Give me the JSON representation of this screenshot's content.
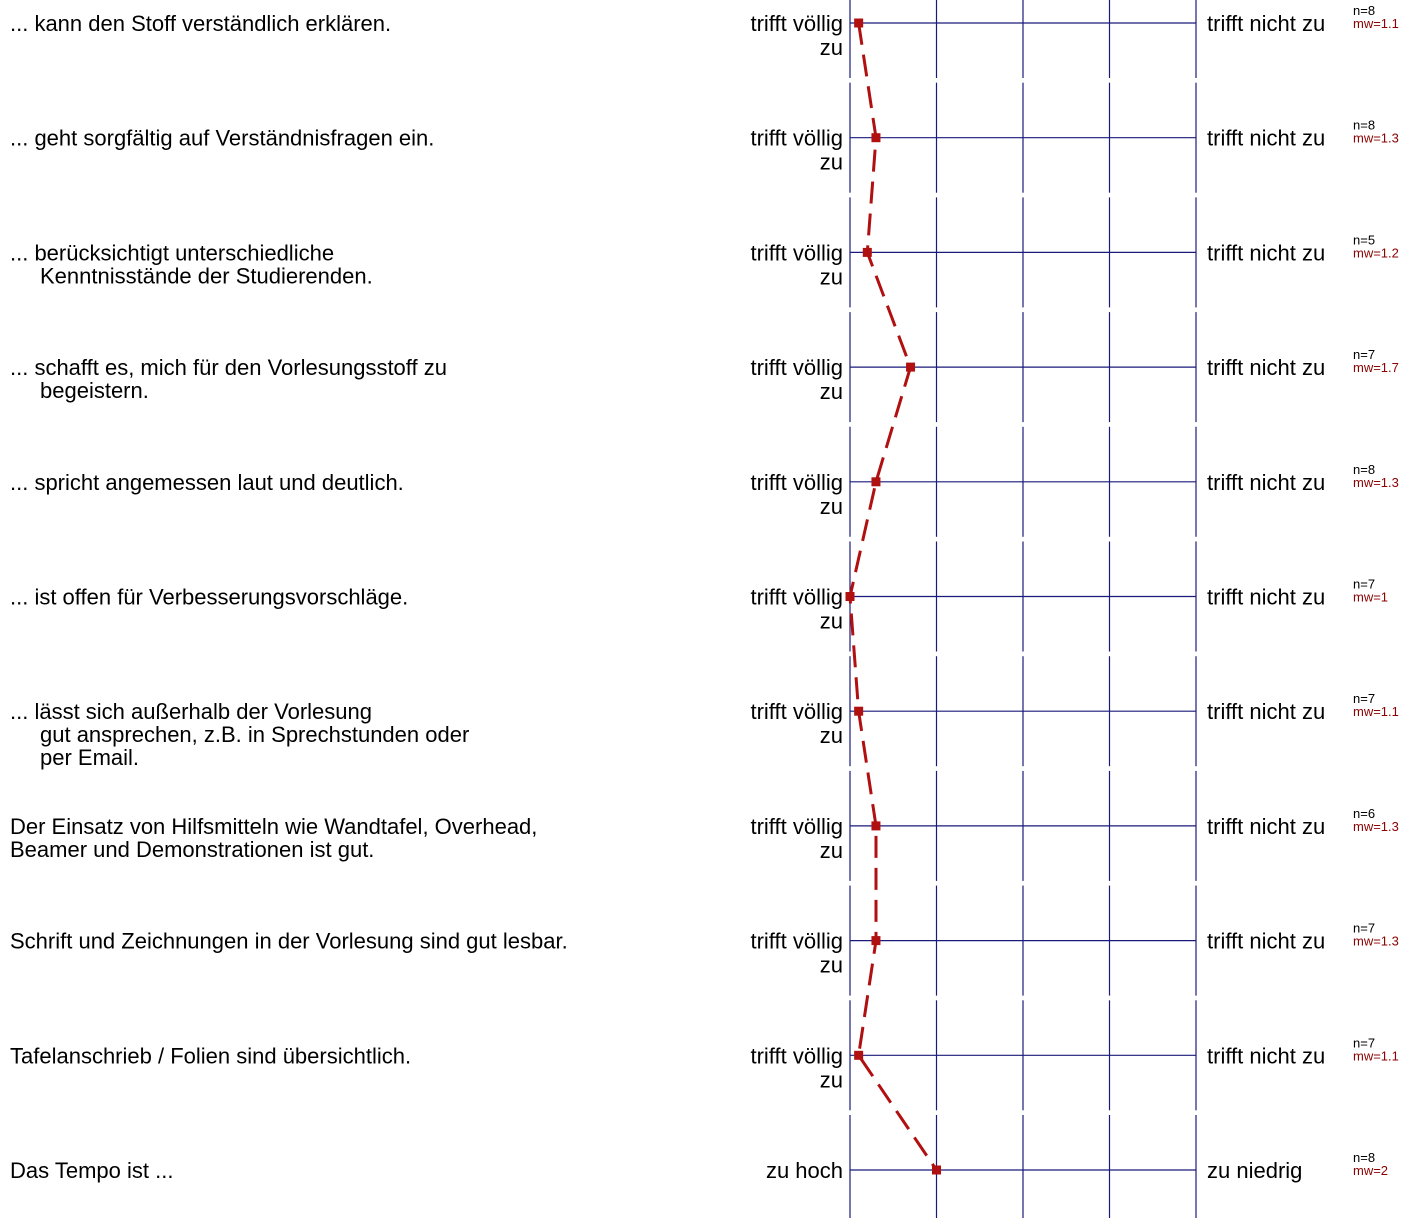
{
  "chart_data": {
    "type": "line",
    "scale": {
      "min": 1,
      "max": 5
    },
    "colors": {
      "axis": "#1a1a7a",
      "line": "#b01010",
      "marker": "#b01010",
      "mw_text": "#8b0000"
    },
    "items": [
      {
        "question": [
          "... kann den Stoff verständlich erklären."
        ],
        "left": "trifft völlig zu",
        "right": "trifft nicht zu",
        "n": "n=8",
        "mw_label": "mw=1.1",
        "mw": 1.1
      },
      {
        "question": [
          "... geht sorgfältig auf Verständnisfragen ein."
        ],
        "left": "trifft völlig zu",
        "right": "trifft nicht zu",
        "n": "n=8",
        "mw_label": "mw=1.3",
        "mw": 1.3
      },
      {
        "question": [
          "... berücksichtigt unterschiedliche",
          "Kenntnisstände der Studierenden."
        ],
        "left": "trifft völlig zu",
        "right": "trifft nicht zu",
        "n": "n=5",
        "mw_label": "mw=1.2",
        "mw": 1.2
      },
      {
        "question": [
          "... schafft es, mich für den Vorlesungsstoff zu",
          "begeistern."
        ],
        "left": "trifft völlig zu",
        "right": "trifft nicht zu",
        "n": "n=7",
        "mw_label": "mw=1.7",
        "mw": 1.7
      },
      {
        "question": [
          "... spricht angemessen laut und deutlich."
        ],
        "left": "trifft völlig zu",
        "right": "trifft nicht zu",
        "n": "n=8",
        "mw_label": "mw=1.3",
        "mw": 1.3
      },
      {
        "question": [
          "... ist offen für Verbesserungsvorschläge."
        ],
        "left": "trifft völlig zu",
        "right": "trifft nicht zu",
        "n": "n=7",
        "mw_label": "mw=1",
        "mw": 1.0
      },
      {
        "question": [
          "... lässt sich außerhalb der Vorlesung",
          "gut ansprechen, z.B. in Sprechstunden oder",
          "per Email."
        ],
        "left": "trifft völlig zu",
        "right": "trifft nicht zu",
        "n": "n=7",
        "mw_label": "mw=1.1",
        "mw": 1.1
      },
      {
        "question": [
          "Der Einsatz von Hilfsmitteln wie Wandtafel, Overhead,",
          "Beamer und Demonstrationen ist gut."
        ],
        "left": "trifft völlig zu",
        "right": "trifft nicht zu",
        "n": "n=6",
        "mw_label": "mw=1.3",
        "mw": 1.3
      },
      {
        "question": [
          "Schrift und Zeichnungen in der Vorlesung sind gut lesbar."
        ],
        "left": "trifft völlig zu",
        "right": "trifft nicht zu",
        "n": "n=7",
        "mw_label": "mw=1.3",
        "mw": 1.3
      },
      {
        "question": [
          "Tafelanschrieb / Folien sind übersichtlich."
        ],
        "left": "trifft völlig zu",
        "right": "trifft nicht zu",
        "n": "n=7",
        "mw_label": "mw=1.1",
        "mw": 1.1
      },
      {
        "question": [
          "Das Tempo ist ..."
        ],
        "left": "zu hoch",
        "right": "zu niedrig",
        "n": "n=8",
        "mw_label": "mw=2",
        "mw": 2.0
      }
    ]
  }
}
